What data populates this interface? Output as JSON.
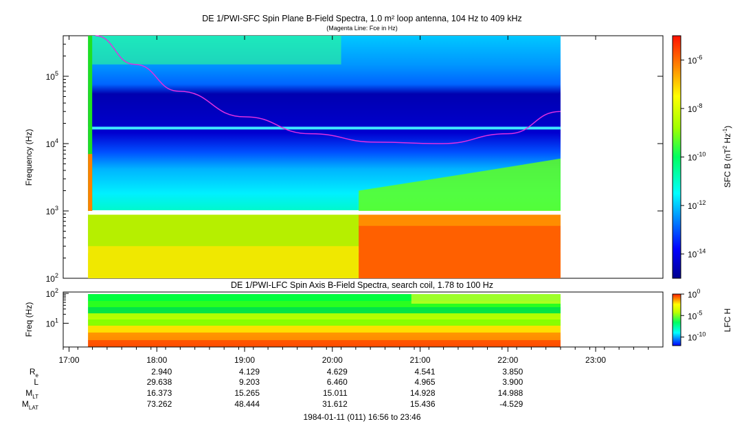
{
  "main_title": "DE 1/PWI-SFC  Spin Plane B-Field Spectra, 1.0 m² loop antenna, 104 Hz to 409 kHz",
  "main_subtitle": "(Magenta Line: Fce in Hz)",
  "lower_title": "DE 1/PWI-LFC  Spin Axis B-Field Spectra, search coil, 1.78 to 100 Hz",
  "footer": "1984-01-11 (011) 16:56 to 23:46",
  "ephemeris": {
    "labels": [
      "R",
      "L",
      "M",
      "M"
    ],
    "subscripts": [
      "e",
      "",
      "LT",
      "LAT"
    ],
    "columns": [
      [
        "2.940",
        "29.638",
        "16.373",
        "73.262"
      ],
      [
        "4.129",
        "9.203",
        "15.265",
        "48.444"
      ],
      [
        "4.629",
        "6.460",
        "15.011",
        "31.612"
      ],
      [
        "4.541",
        "4.965",
        "14.928",
        "15.436"
      ],
      [
        "3.850",
        "3.900",
        "14.988",
        "-4.529"
      ]
    ]
  },
  "colors": {
    "fce_line": "#e030e0",
    "jet": [
      "#00008f",
      "#0000ff",
      "#0080ff",
      "#00ffff",
      "#00ff80",
      "#80ff00",
      "#ffff00",
      "#ff8000",
      "#ff0000",
      "#800000"
    ]
  },
  "chart_data": [
    {
      "type": "heatmap",
      "title": "DE 1/PWI-SFC  Spin Plane B-Field Spectra, 1.0 m² loop antenna, 104 Hz to 409 kHz",
      "xlabel": "",
      "ylabel": "Frequency (Hz)",
      "yscale": "log",
      "ylim": [
        100,
        400000
      ],
      "xlim": [
        "16:56",
        "23:46"
      ],
      "y_ticks": [
        {
          "base": "10",
          "exp": "2"
        },
        {
          "base": "10",
          "exp": "3"
        },
        {
          "base": "10",
          "exp": "4"
        },
        {
          "base": "10",
          "exp": "5"
        }
      ],
      "colorbar": {
        "label_main": "SFC B (nT",
        "label_exp1": "2",
        "label_mid": " Hz",
        "label_exp2": "-1",
        "label_end": ")",
        "scale": "log",
        "range": [
          1e-15,
          1e-05
        ],
        "ticks": [
          {
            "base": "10",
            "exp": "-6"
          },
          {
            "base": "10",
            "exp": "-8"
          },
          {
            "base": "10",
            "exp": "-10"
          },
          {
            "base": "10",
            "exp": "-12"
          },
          {
            "base": "10",
            "exp": "-14"
          }
        ]
      },
      "data_span": [
        "17:13",
        "22:36"
      ],
      "fce_line": {
        "label": "Fce in Hz",
        "points": [
          [
            17.3,
            400000
          ],
          [
            17.75,
            150000
          ],
          [
            18.25,
            60000
          ],
          [
            19.0,
            25000
          ],
          [
            19.75,
            14000
          ],
          [
            20.5,
            10500
          ],
          [
            21.25,
            10000
          ],
          [
            22.0,
            14000
          ],
          [
            22.6,
            30000
          ]
        ]
      }
    },
    {
      "type": "heatmap",
      "title": "DE 1/PWI-LFC  Spin Axis B-Field Spectra, search coil, 1.78 to 100 Hz",
      "ylabel": "Freq (Hz)",
      "yscale": "log",
      "ylim": [
        1.78,
        100
      ],
      "y_ticks": [
        {
          "base": "10",
          "exp": "1"
        },
        {
          "base": "10",
          "exp": "2"
        }
      ],
      "colorbar": {
        "label": "LFC H",
        "scale": "log",
        "range": [
          1e-12,
          1
        ],
        "ticks": [
          {
            "base": "10",
            "exp": "0"
          },
          {
            "base": "10",
            "exp": "-5"
          },
          {
            "base": "10",
            "exp": "-10"
          }
        ]
      },
      "data_span": [
        "17:13",
        "22:36"
      ]
    }
  ],
  "x_axis": {
    "ticks": [
      "17:00",
      "18:00",
      "19:00",
      "20:00",
      "21:00",
      "22:00",
      "23:00"
    ]
  }
}
